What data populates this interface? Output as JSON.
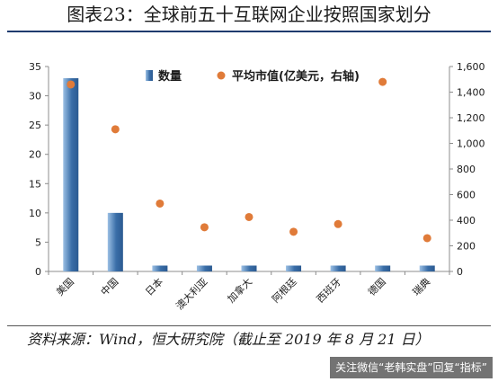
{
  "title": "图表23：全球前五十互联网企业按照国家划分",
  "source": "资料来源：Wind，恒大研究院（截止至 2019 年 8 月 21 日）",
  "watermark": "关注微信“老韩实盘”回复“指标”",
  "colors": {
    "bar": "#3a6ea8",
    "bar_light": "#9cc0e4",
    "dot": "#e07b39",
    "axis": "#8c8c8c"
  },
  "chart_data": {
    "type": "bar",
    "categories": [
      "美国",
      "中国",
      "日本",
      "澳大利亚",
      "加拿大",
      "阿根廷",
      "西班牙",
      "德国",
      "瑞典"
    ],
    "series": [
      {
        "name": "数量",
        "type": "bar",
        "axis": "left",
        "values": [
          33,
          10,
          1,
          1,
          1,
          1,
          1,
          1,
          1
        ]
      },
      {
        "name": "平均市值(亿美元，右轴)",
        "type": "scatter",
        "axis": "right",
        "values": [
          1460,
          1110,
          530,
          345,
          425,
          310,
          370,
          1480,
          260
        ]
      }
    ],
    "y_left": {
      "min": 0,
      "max": 35,
      "ticks": [
        "0",
        "5",
        "10",
        "15",
        "20",
        "25",
        "30",
        "35"
      ]
    },
    "y_right": {
      "min": 0,
      "max": 1600,
      "ticks": [
        "0",
        "200",
        "400",
        "600",
        "800",
        "1,000",
        "1,200",
        "1,400",
        "1,600"
      ]
    },
    "legend": "top-center",
    "grid": false
  }
}
